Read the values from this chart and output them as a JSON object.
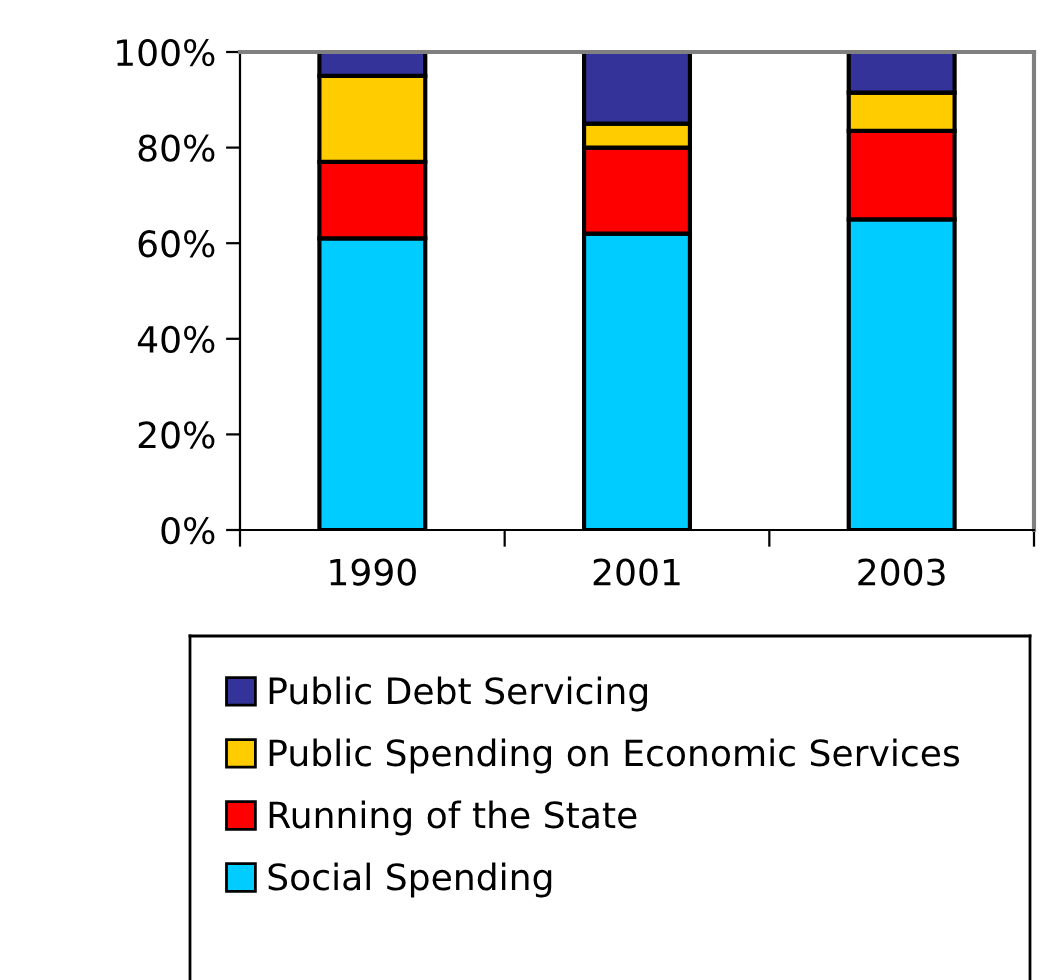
{
  "chart_data": {
    "type": "bar",
    "stacked": true,
    "categories": [
      "1990",
      "2001",
      "2003"
    ],
    "series": [
      {
        "name": "Social Spending",
        "color": "#00ccff",
        "values": [
          61,
          62,
          65
        ]
      },
      {
        "name": "Running of the State",
        "color": "#ff0000",
        "values": [
          16,
          18,
          18.5
        ]
      },
      {
        "name": "Public Spending on Economic Services",
        "color": "#ffcc00",
        "values": [
          18,
          5,
          8
        ]
      },
      {
        "name": "Public Debt Servicing",
        "color": "#333399",
        "values": [
          5,
          15,
          8.5
        ]
      }
    ],
    "ylim": [
      0,
      100
    ],
    "yticks": [
      {
        "value": 0,
        "label": "0%"
      },
      {
        "value": 20,
        "label": "20%"
      },
      {
        "value": 40,
        "label": "40%"
      },
      {
        "value": 60,
        "label": "60%"
      },
      {
        "value": 80,
        "label": "80%"
      },
      {
        "value": 100,
        "label": "100%"
      }
    ],
    "legend": "bottom",
    "grid": false
  }
}
